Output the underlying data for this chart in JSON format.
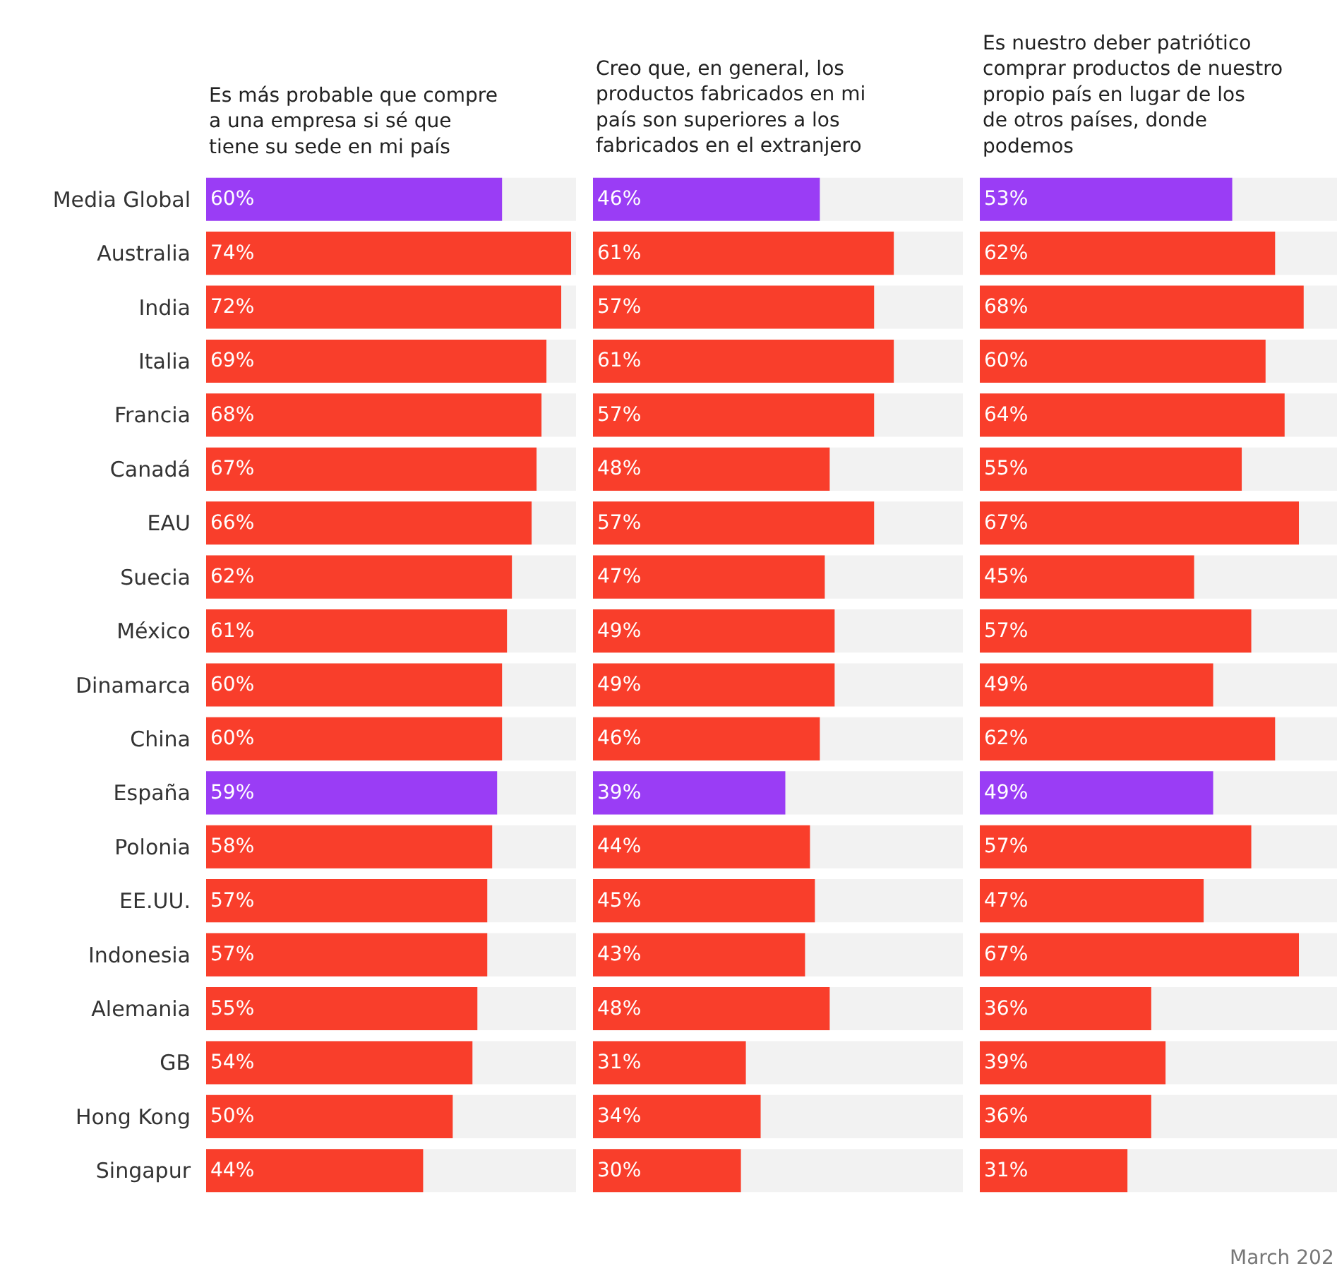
{
  "chart_data": [
    {
      "type": "bar",
      "orientation": "horizontal",
      "title": "Es más probable que compre a una empresa si sé que tiene su sede en mi país",
      "tick_labels": "y",
      "xlim": [
        0,
        75
      ],
      "categories": [
        "Media Global",
        "Australia",
        "India",
        "Italia",
        "Francia",
        "Canadá",
        "EAU",
        "Suecia",
        "México",
        "Dinamarca",
        "China",
        "España",
        "Polonia",
        "EE.UU.",
        "Indonesia",
        "Alemania",
        "GB",
        "Hong Kong",
        "Singapur"
      ],
      "values": [
        60,
        74,
        72,
        69,
        68,
        67,
        66,
        62,
        61,
        60,
        60,
        59,
        58,
        57,
        57,
        55,
        54,
        50,
        44
      ],
      "value_labels": [
        "60%",
        "74%",
        "72%",
        "69%",
        "68%",
        "67%",
        "66%",
        "62%",
        "61%",
        "60%",
        "60%",
        "59%",
        "58%",
        "57%",
        "57%",
        "55%",
        "54%",
        "50%",
        "44%"
      ],
      "colors": [
        "#9a3df5",
        "#f93e2b",
        "#f93e2b",
        "#f93e2b",
        "#f93e2b",
        "#f93e2b",
        "#f93e2b",
        "#f93e2b",
        "#f93e2b",
        "#f93e2b",
        "#f93e2b",
        "#9a3df5",
        "#f93e2b",
        "#f93e2b",
        "#f93e2b",
        "#f93e2b",
        "#f93e2b",
        "#f93e2b",
        "#f93e2b"
      ]
    },
    {
      "type": "bar",
      "orientation": "horizontal",
      "title": "Creo que, en general, los productos fabricados en mi país son superiores a los fabricados en el extranjero",
      "tick_labels": false,
      "xlim": [
        0,
        75
      ],
      "categories": [
        null,
        null,
        null,
        null,
        null,
        null,
        null,
        null,
        null,
        null,
        null,
        null,
        null,
        null,
        null,
        null,
        null,
        null,
        null
      ],
      "values": [
        46,
        61,
        57,
        61,
        57,
        48,
        57,
        47,
        49,
        49,
        46,
        39,
        44,
        45,
        43,
        48,
        31,
        34,
        30
      ],
      "value_labels": [
        "46%",
        "61%",
        "57%",
        "61%",
        "57%",
        "48%",
        "57%",
        "47%",
        "49%",
        "49%",
        "46%",
        "39%",
        "44%",
        "45%",
        "43%",
        "48%",
        "31%",
        "34%",
        "30%"
      ],
      "colors": [
        "#9a3df5",
        "#f93e2b",
        "#f93e2b",
        "#f93e2b",
        "#f93e2b",
        "#f93e2b",
        "#f93e2b",
        "#f93e2b",
        "#f93e2b",
        "#f93e2b",
        "#f93e2b",
        "#9a3df5",
        "#f93e2b",
        "#f93e2b",
        "#f93e2b",
        "#f93e2b",
        "#f93e2b",
        "#f93e2b",
        "#f93e2b"
      ]
    },
    {
      "type": "bar",
      "orientation": "horizontal",
      "title": "Es nuestro deber patriótico comprar productos de nuestro propio país en lugar de los de otros países, donde podemos",
      "tick_labels": false,
      "xlim": [
        0,
        75
      ],
      "categories": [
        null,
        null,
        null,
        null,
        null,
        null,
        null,
        null,
        null,
        null,
        null,
        null,
        null,
        null,
        null,
        null,
        null,
        null,
        null
      ],
      "values": [
        53,
        62,
        68,
        60,
        64,
        55,
        67,
        45,
        57,
        49,
        62,
        49,
        57,
        47,
        67,
        36,
        39,
        36,
        31
      ],
      "value_labels": [
        "53%",
        "62%",
        "68%",
        "60%",
        "64%",
        "55%",
        "67%",
        "45%",
        "57%",
        "49%",
        "62%",
        "49%",
        "57%",
        "47%",
        "67%",
        "36%",
        "39%",
        "36%",
        "31%"
      ],
      "colors": [
        "#9a3df5",
        "#f93e2b",
        "#f93e2b",
        "#f93e2b",
        "#f93e2b",
        "#f93e2b",
        "#f93e2b",
        "#f93e2b",
        "#f93e2b",
        "#f93e2b",
        "#f93e2b",
        "#9a3df5",
        "#f93e2b",
        "#f93e2b",
        "#f93e2b",
        "#f93e2b",
        "#f93e2b",
        "#f93e2b",
        "#f93e2b"
      ],
      "annotations": [
        "March 202"
      ]
    }
  ]
}
